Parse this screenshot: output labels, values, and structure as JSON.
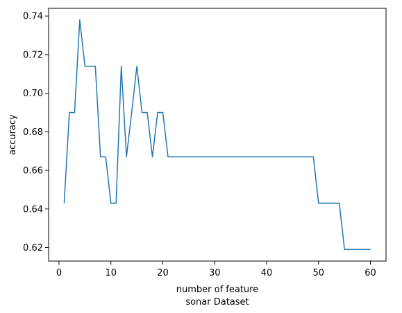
{
  "chart_data": {
    "type": "line",
    "title": "",
    "xlabel": "number of feature",
    "xlabel_line2": "sonar Dataset",
    "ylabel": "accuracy",
    "xlim": [
      -2,
      63
    ],
    "ylim": [
      0.613,
      0.744
    ],
    "xticks": [
      0,
      10,
      20,
      30,
      40,
      50,
      60
    ],
    "yticks": [
      0.62,
      0.64,
      0.66,
      0.68,
      0.7,
      0.72,
      0.74
    ],
    "ytick_labels": [
      "0.62",
      "0.64",
      "0.66",
      "0.68",
      "0.70",
      "0.72",
      "0.74"
    ],
    "grid": false,
    "legend": "none",
    "line_color": "#1f77b4",
    "series": [
      {
        "x": [
          1,
          2,
          3,
          4,
          5,
          6,
          7,
          8,
          9,
          10,
          11,
          12,
          13,
          14,
          15,
          16,
          17,
          18,
          19,
          20,
          21,
          22,
          23,
          24,
          25,
          26,
          27,
          28,
          29,
          30,
          31,
          32,
          33,
          34,
          35,
          36,
          37,
          38,
          39,
          40,
          41,
          42,
          43,
          44,
          45,
          46,
          47,
          48,
          49,
          50,
          51,
          52,
          53,
          54,
          55,
          56,
          57,
          58,
          59,
          60
        ],
        "values": [
          0.643,
          0.69,
          0.69,
          0.738,
          0.714,
          0.714,
          0.714,
          0.667,
          0.667,
          0.643,
          0.643,
          0.714,
          0.667,
          0.69,
          0.714,
          0.69,
          0.69,
          0.667,
          0.69,
          0.69,
          0.667,
          0.667,
          0.667,
          0.667,
          0.667,
          0.667,
          0.667,
          0.667,
          0.667,
          0.667,
          0.667,
          0.667,
          0.667,
          0.667,
          0.667,
          0.667,
          0.667,
          0.667,
          0.667,
          0.667,
          0.667,
          0.667,
          0.667,
          0.667,
          0.667,
          0.667,
          0.667,
          0.667,
          0.667,
          0.643,
          0.643,
          0.643,
          0.643,
          0.643,
          0.619,
          0.619,
          0.619,
          0.619,
          0.619,
          0.619
        ]
      }
    ]
  }
}
